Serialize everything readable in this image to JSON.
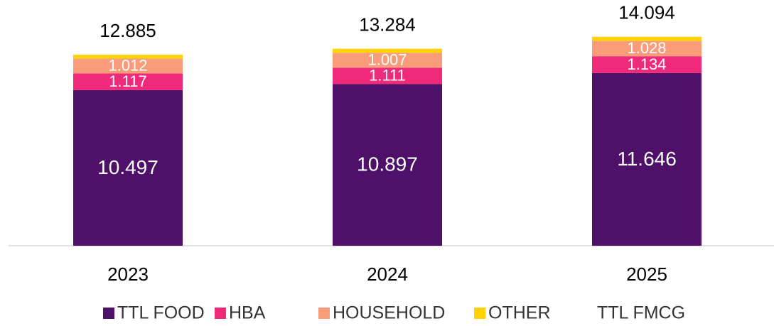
{
  "chart_data": {
    "type": "stacked_bar",
    "categories": [
      "2023",
      "2024",
      "2025"
    ],
    "series": [
      {
        "name": "TTL FOOD",
        "color": "#4e1068",
        "values": [
          10.497,
          10.897,
          11.646
        ]
      },
      {
        "name": "HBA",
        "color": "#ef2a7b",
        "values": [
          1.117,
          1.111,
          1.134
        ]
      },
      {
        "name": "HOUSEHOLD",
        "color": "#f99c7a",
        "values": [
          1.012,
          1.007,
          1.028
        ]
      },
      {
        "name": "OTHER",
        "color": "#ffd200",
        "values": [
          0.259,
          0.269,
          0.286
        ]
      },
      {
        "name": "TTL FMCG",
        "values": [
          12.885,
          13.284,
          14.094
        ]
      }
    ]
  }
}
